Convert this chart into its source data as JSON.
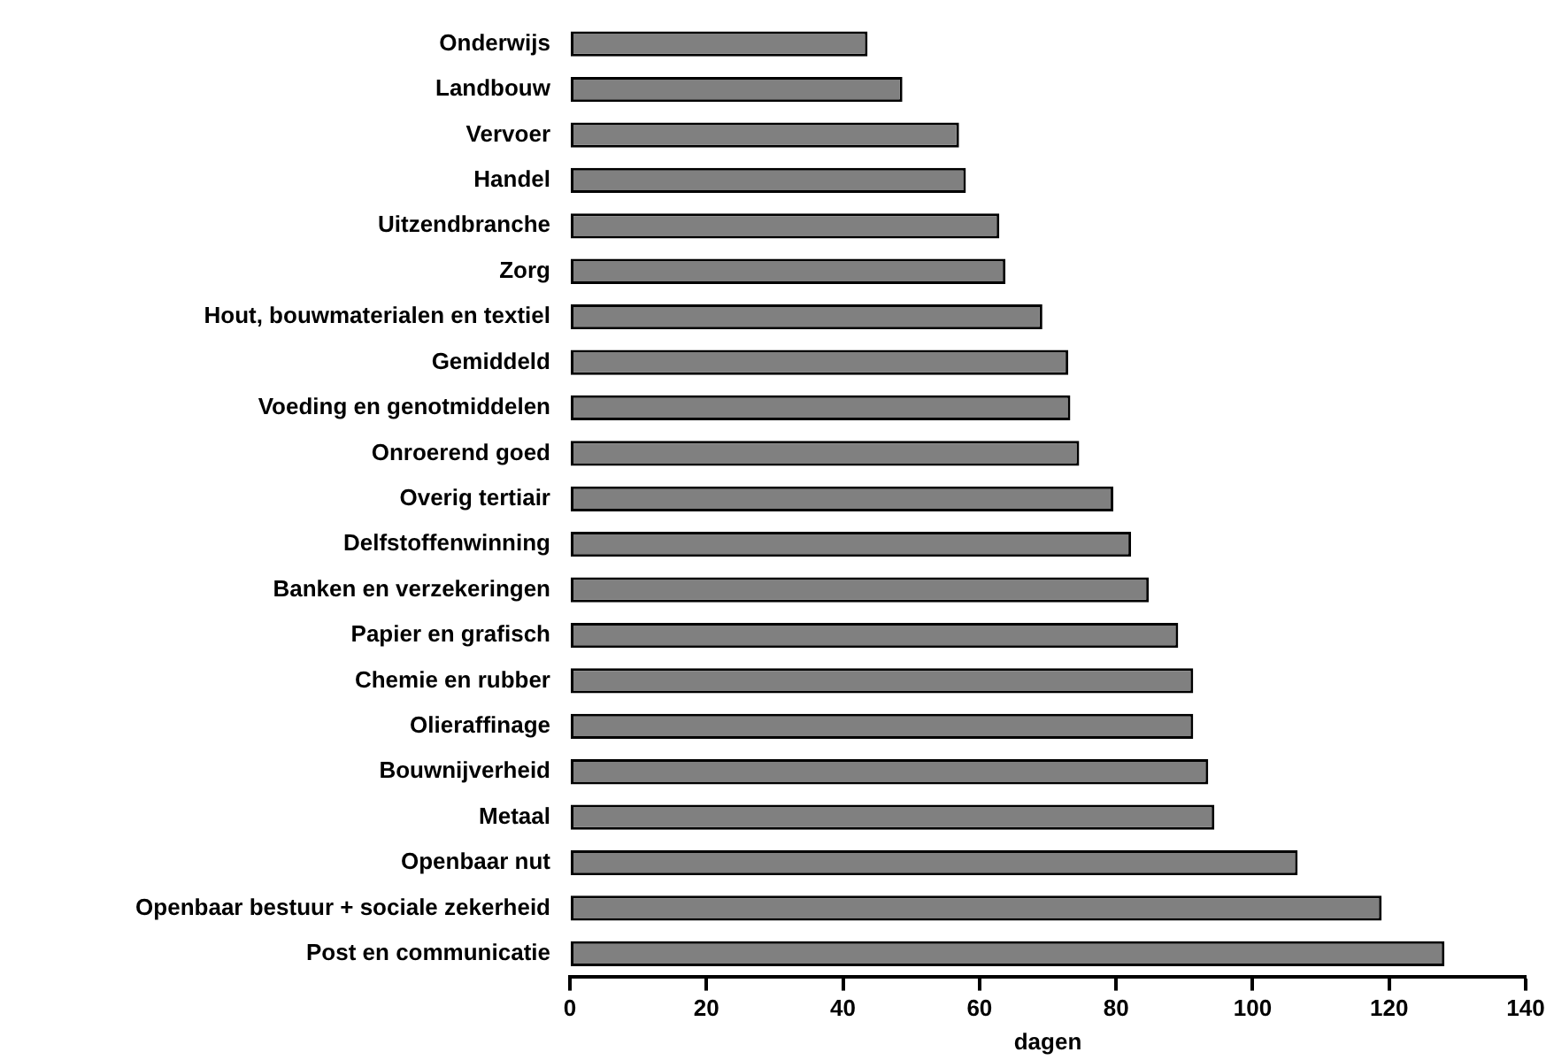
{
  "chart_data": {
    "type": "bar",
    "orientation": "horizontal",
    "xlabel": "dagen",
    "categories": [
      "Onderwijs",
      "Landbouw",
      "Vervoer",
      "Handel",
      "Uitzendbranche",
      "Zorg",
      "Hout, bouwmaterialen en textiel",
      "Gemiddeld",
      "Voeding en genotmiddelen",
      "Onroerend goed",
      "Overig tertiair",
      "Delfstoffenwinning",
      "Banken en verzekeringen",
      "Papier en grafisch",
      "Chemie en rubber",
      "Olieraffinage",
      "Bouwnijverheid",
      "Metaal",
      "Openbaar nut",
      "Openbaar bestuur + sociale zekerheid",
      "Post en communicatie"
    ],
    "values": [
      43.6,
      48.7,
      57.0,
      58.0,
      62.9,
      63.8,
      69.2,
      73.0,
      73.3,
      74.6,
      79.6,
      82.2,
      84.8,
      89.1,
      91.3,
      91.3,
      93.5,
      94.4,
      106.6,
      118.9,
      128.1
    ],
    "color": "#808080",
    "xlim": [
      0,
      140
    ],
    "xticks": [
      0,
      20,
      40,
      60,
      80,
      100,
      120,
      140
    ],
    "grid": false,
    "legend": false
  }
}
